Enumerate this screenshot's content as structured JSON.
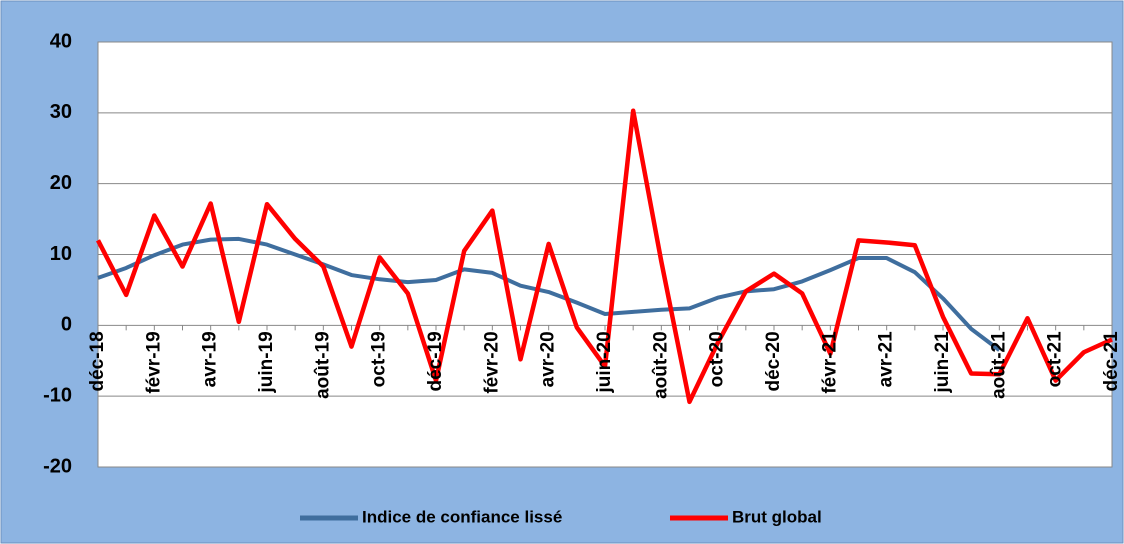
{
  "chart_data": {
    "type": "line",
    "categories": [
      "déc-18",
      null,
      "févr-19",
      null,
      "avr-19",
      null,
      "juin-19",
      null,
      "août-19",
      null,
      "oct-19",
      null,
      "déc-19",
      null,
      "févr-20",
      null,
      "avr-20",
      null,
      "juin-20",
      null,
      "août-20",
      null,
      "oct-20",
      null,
      "déc-20",
      null,
      "févr-21",
      null,
      "avr-21",
      null,
      "juin-21",
      null,
      "août-21",
      null,
      "oct-21",
      null,
      "déc-21"
    ],
    "series": [
      {
        "name": "Indice de confiance lissé",
        "color": "#3f6e9e",
        "values": [
          6.7,
          8.1,
          9.9,
          11.4,
          12.1,
          12.2,
          11.4,
          10,
          8.6,
          7.1,
          6.5,
          6.1,
          6.4,
          7.9,
          7.4,
          5.6,
          4.7,
          3.2,
          1.6,
          1.9,
          2.2,
          2.4,
          3.9,
          4.8,
          5.1,
          6.2,
          7.8,
          9.5,
          9.5,
          7.5,
          3.8,
          -0.5,
          -3.5,
          null,
          null,
          null,
          null
        ]
      },
      {
        "name": "Brut global",
        "color": "#ff0000",
        "values": [
          12,
          4.3,
          15.5,
          8.3,
          17.2,
          0.5,
          17.1,
          12.2,
          8.3,
          -3,
          9.6,
          4.5,
          -7.8,
          10.5,
          16.2,
          -4.8,
          11.5,
          -0.3,
          -5.8,
          30.3,
          9,
          -10.8,
          -2.5,
          4.8,
          7.3,
          4.5,
          -4,
          12,
          11.7,
          11.3,
          1.2,
          -6.8,
          -6.9,
          1,
          -7.8,
          -3.8,
          -2
        ]
      }
    ],
    "ylim": [
      -20,
      40
    ],
    "yticks": [
      -20,
      -10,
      0,
      10,
      20,
      30,
      40
    ],
    "grid": true,
    "legend": "bottom"
  }
}
